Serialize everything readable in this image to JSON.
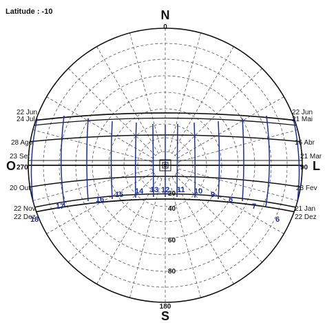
{
  "header": {
    "latitude_label": "Latitude : -10"
  },
  "cardinals": {
    "north": "N",
    "south": "S",
    "west": "O",
    "east": "L"
  },
  "azimuths": {
    "north": "0",
    "south": "180",
    "west": "270",
    "east": "90"
  },
  "altitude_labels": [
    "20",
    "40",
    "60",
    "80"
  ],
  "dates_left": [
    "22 Jun",
    "24 Jul",
    "28 Ago",
    "23 Set",
    "20 Out",
    "22 Nov",
    "22 Dez"
  ],
  "dates_right": [
    "22 Jun",
    "21 Mai",
    "16 Abr",
    "21 Mar",
    "23 Fev",
    "21 Jan",
    "22 Dez"
  ],
  "hours": [
    "18",
    "17",
    "16",
    "15",
    "14",
    "13",
    "12",
    "11",
    "10",
    "9",
    "8",
    "7",
    "6"
  ],
  "colors": {
    "date_lines": "#111111",
    "hour_lines": "#1a2fa0",
    "grid": "#555555"
  }
}
